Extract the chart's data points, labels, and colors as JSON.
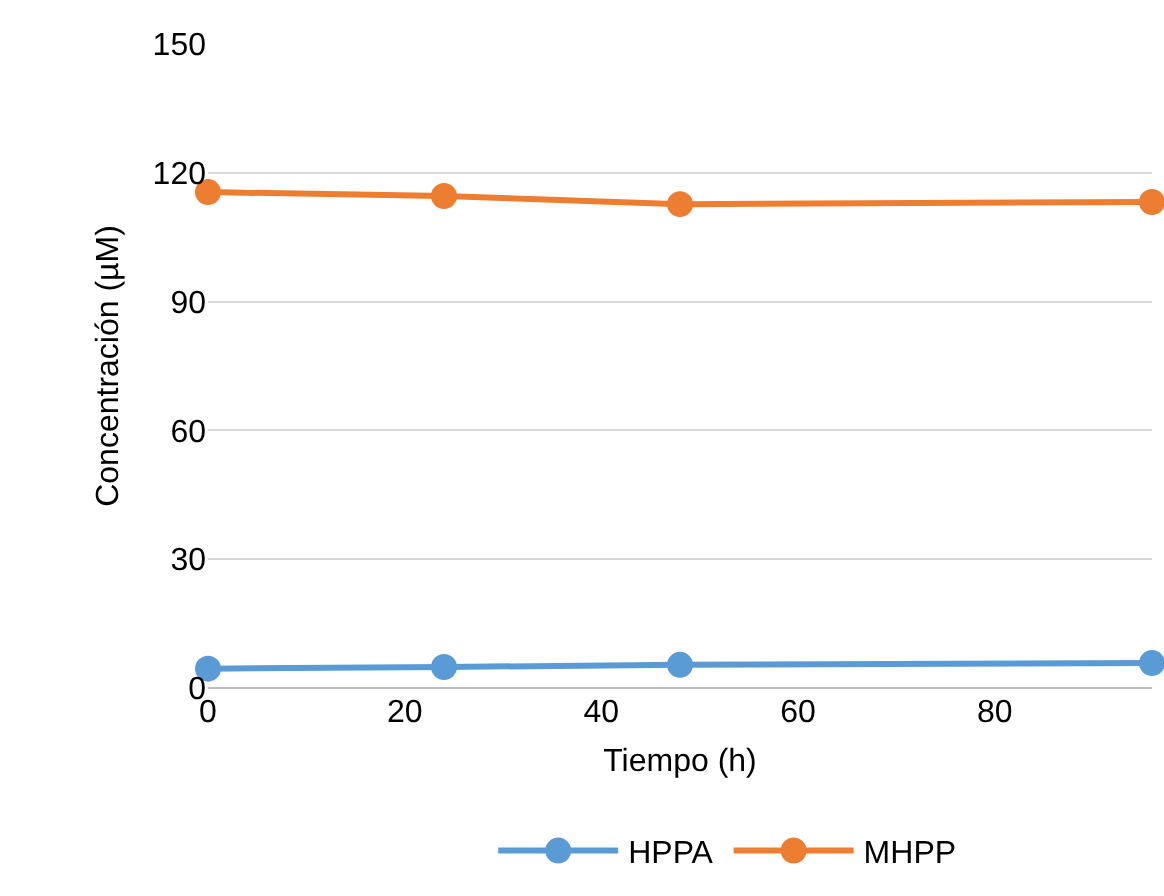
{
  "chart_data": {
    "type": "line",
    "xlabel": "Tiempo (h)",
    "ylabel": "Concentración (µM)",
    "x": [
      0,
      24,
      48,
      96
    ],
    "series": [
      {
        "name": "HPPA",
        "color": "#5b9bd5",
        "values": [
          4.5,
          4.9,
          5.4,
          5.8
        ]
      },
      {
        "name": "MHPP",
        "color": "#ed7d31",
        "values": [
          115.5,
          114.6,
          112.7,
          113.2
        ]
      }
    ],
    "xlim": [
      0,
      96
    ],
    "xticks": [
      0,
      20,
      40,
      60,
      80
    ],
    "ylim": [
      0,
      150
    ],
    "yticks": [
      0,
      30,
      60,
      90,
      120,
      150
    ],
    "grid": "y",
    "legend": "bottom",
    "marker": "circle",
    "line_style": "solid"
  }
}
